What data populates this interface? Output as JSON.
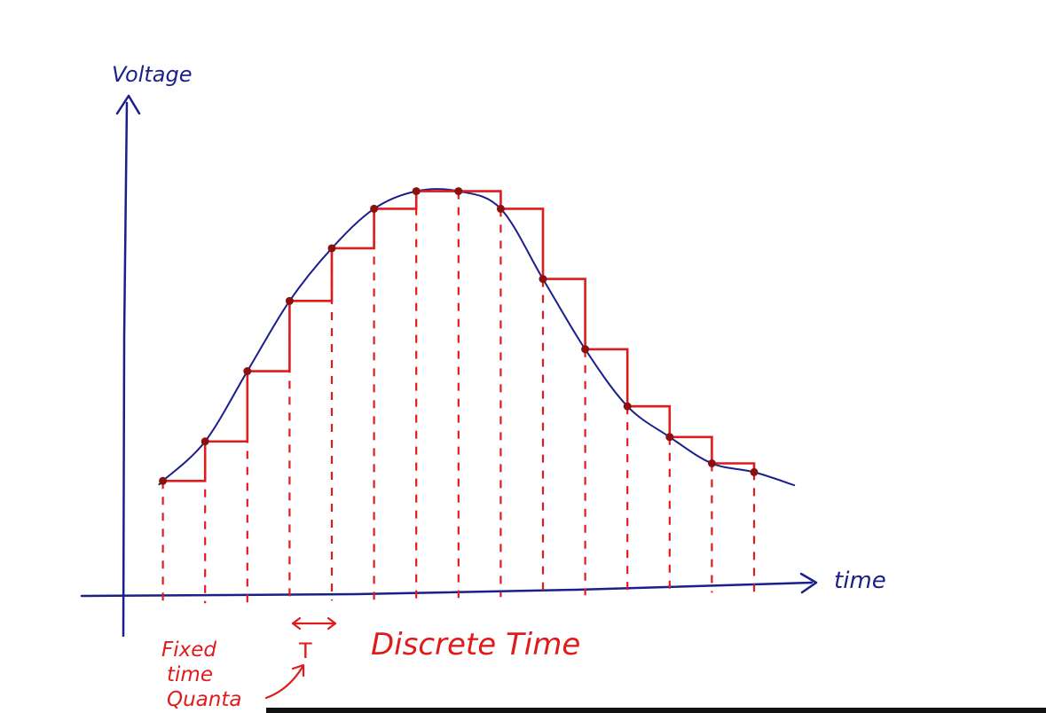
{
  "labels": {
    "y_axis": "Voltage",
    "x_axis": "time",
    "period": "T",
    "quanta_line1": "Fixed",
    "quanta_line2": "time",
    "quanta_line3": "Quanta",
    "discrete": "Discrete Time"
  },
  "colors": {
    "axis": "#1a1f8a",
    "curve": "#1a1f8a",
    "samples": "#e01b1b",
    "dots": "#8b1010"
  },
  "chart_data": {
    "type": "line",
    "title": "",
    "xlabel": "time",
    "ylabel": "Voltage",
    "samples": [
      {
        "t": 1,
        "v": 1.3
      },
      {
        "t": 2,
        "v": 1.75
      },
      {
        "t": 3,
        "v": 2.55
      },
      {
        "t": 4,
        "v": 3.35
      },
      {
        "t": 5,
        "v": 3.95
      },
      {
        "t": 6,
        "v": 4.4
      },
      {
        "t": 7,
        "v": 4.6
      },
      {
        "t": 8,
        "v": 4.6
      },
      {
        "t": 9,
        "v": 4.4
      },
      {
        "t": 10,
        "v": 3.6
      },
      {
        "t": 11,
        "v": 2.8
      },
      {
        "t": 12,
        "v": 2.15
      },
      {
        "t": 13,
        "v": 1.8
      },
      {
        "t": 14,
        "v": 1.5
      },
      {
        "t": 15,
        "v": 1.4
      }
    ]
  }
}
